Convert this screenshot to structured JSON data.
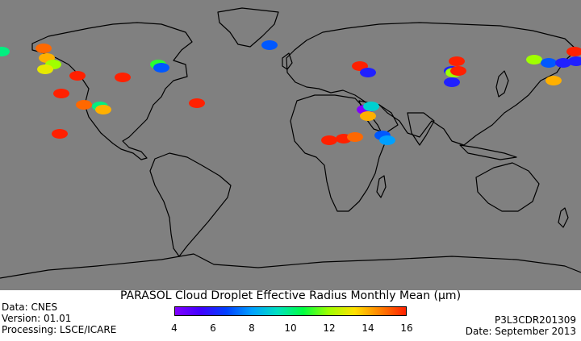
{
  "title": "PARASOL Cloud Droplet Effective Radius Monthly Mean (μm)",
  "metadata": {
    "data": "Data: CNES",
    "version": "Version: 01.01",
    "processing": "Processing: LSCE/ICARE",
    "product": "P3L3CDR201309",
    "date": "Date: September 2013"
  },
  "colorbar": {
    "min": 4,
    "max": 16,
    "ticks": [
      "4",
      "6",
      "8",
      "10",
      "12",
      "14",
      "16"
    ],
    "colors": [
      "#8000ff",
      "#4000ff",
      "#0040ff",
      "#00a0ff",
      "#00e0c0",
      "#00ff40",
      "#a0ff00",
      "#ffe000",
      "#ff8000",
      "#ff2000"
    ]
  },
  "colors": {
    "ocean_land": "#808080",
    "coastline": "#000000"
  },
  "chart_data": {
    "type": "map",
    "variable": "Cloud Droplet Effective Radius (μm)",
    "points": [
      {
        "lon": -179,
        "lat": 58,
        "value": 10
      },
      {
        "lon": -153,
        "lat": 60,
        "value": 15
      },
      {
        "lon": -151,
        "lat": 54,
        "value": 14
      },
      {
        "lon": -147,
        "lat": 50,
        "value": 12
      },
      {
        "lon": -152,
        "lat": 47,
        "value": 13
      },
      {
        "lon": -132,
        "lat": 43,
        "value": 16
      },
      {
        "lon": -142,
        "lat": 32,
        "value": 16
      },
      {
        "lon": -128,
        "lat": 25,
        "value": 15
      },
      {
        "lon": -118,
        "lat": 24,
        "value": 10
      },
      {
        "lon": -116,
        "lat": 22,
        "value": 14
      },
      {
        "lon": -143,
        "lat": 7,
        "value": 16
      },
      {
        "lon": -104,
        "lat": 42,
        "value": 16
      },
      {
        "lon": -82,
        "lat": 50,
        "value": 11
      },
      {
        "lon": -80,
        "lat": 48,
        "value": 7
      },
      {
        "lon": -58,
        "lat": 26,
        "value": 16
      },
      {
        "lon": -13,
        "lat": 62,
        "value": 7
      },
      {
        "lon": 43,
        "lat": 49,
        "value": 16
      },
      {
        "lon": 48,
        "lat": 45,
        "value": 6
      },
      {
        "lon": 46,
        "lat": 22,
        "value": 4
      },
      {
        "lon": 50,
        "lat": 24,
        "value": 9
      },
      {
        "lon": 48,
        "lat": 18,
        "value": 14
      },
      {
        "lon": 24,
        "lat": 3,
        "value": 16
      },
      {
        "lon": 33,
        "lat": 4,
        "value": 16
      },
      {
        "lon": 40,
        "lat": 5,
        "value": 15
      },
      {
        "lon": 57,
        "lat": 6,
        "value": 7
      },
      {
        "lon": 60,
        "lat": 3,
        "value": 8
      },
      {
        "lon": 100,
        "lat": 46,
        "value": 6
      },
      {
        "lon": 101,
        "lat": 45,
        "value": 12
      },
      {
        "lon": 104,
        "lat": 46,
        "value": 16
      },
      {
        "lon": 100,
        "lat": 39,
        "value": 6
      },
      {
        "lon": 103,
        "lat": 52,
        "value": 16
      },
      {
        "lon": 151,
        "lat": 53,
        "value": 12
      },
      {
        "lon": 160,
        "lat": 51,
        "value": 7
      },
      {
        "lon": 169,
        "lat": 51,
        "value": 6
      },
      {
        "lon": 176,
        "lat": 58,
        "value": 16
      },
      {
        "lon": 177,
        "lat": 52,
        "value": 6
      },
      {
        "lon": 163,
        "lat": 40,
        "value": 14
      }
    ]
  }
}
